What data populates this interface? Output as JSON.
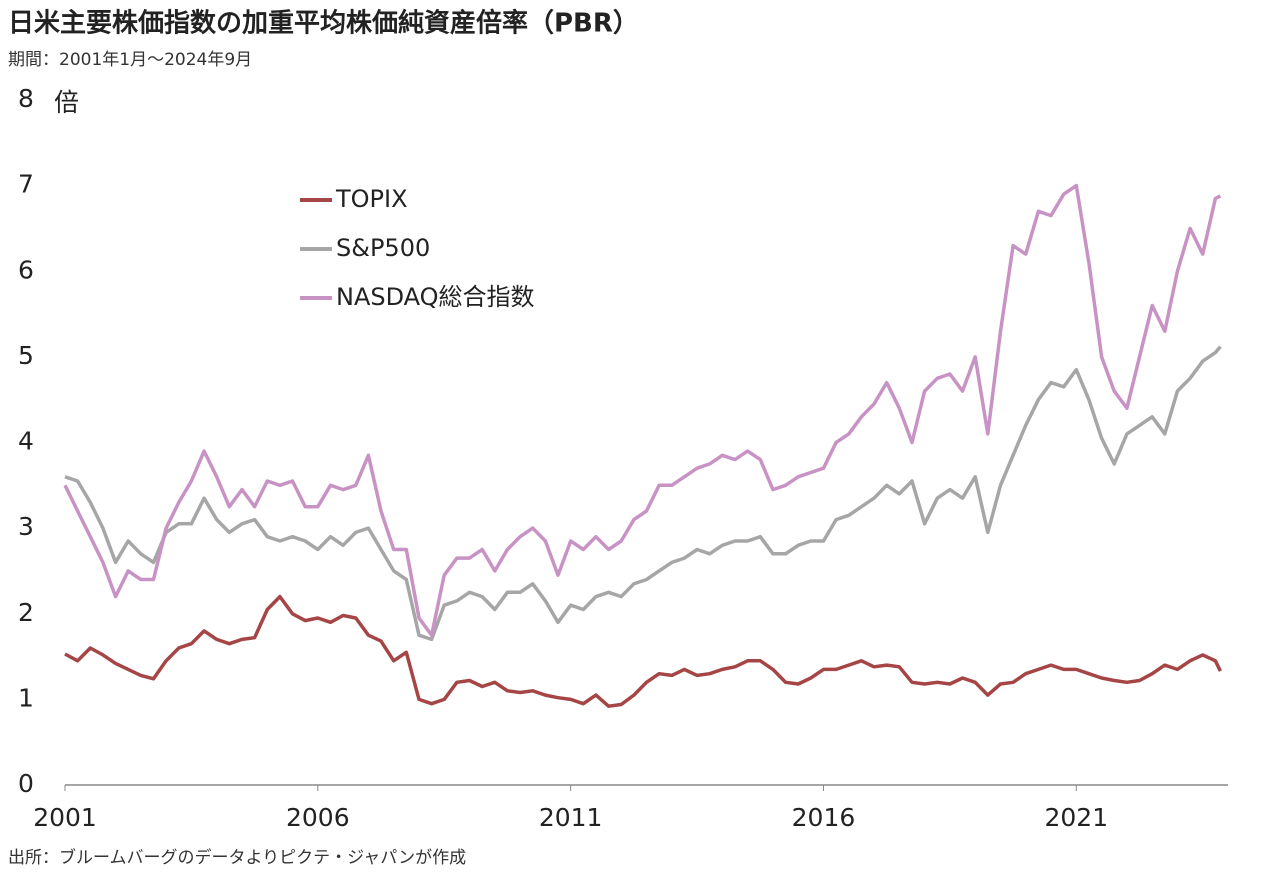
{
  "chart_data": {
    "type": "line",
    "title": "日米主要株価指数の加重平均株価純資産倍率（PBR）",
    "subtitle": "期間：2001年1月～2024年9月",
    "y_label": "倍",
    "source": "出所：ブルームバーグのデータよりピクテ・ジャパンが作成",
    "x": [
      2001,
      2001.25,
      2001.5,
      2001.75,
      2002,
      2002.25,
      2002.5,
      2002.75,
      2003,
      2003.25,
      2003.5,
      2003.75,
      2004,
      2004.25,
      2004.5,
      2004.75,
      2005,
      2005.25,
      2005.5,
      2005.75,
      2006,
      2006.25,
      2006.5,
      2006.75,
      2007,
      2007.25,
      2007.5,
      2007.75,
      2008,
      2008.25,
      2008.5,
      2008.75,
      2009,
      2009.25,
      2009.5,
      2009.75,
      2010,
      2010.25,
      2010.5,
      2010.75,
      2011,
      2011.25,
      2011.5,
      2011.75,
      2012,
      2012.25,
      2012.5,
      2012.75,
      2013,
      2013.25,
      2013.5,
      2013.75,
      2014,
      2014.25,
      2014.5,
      2014.75,
      2015,
      2015.25,
      2015.5,
      2015.75,
      2016,
      2016.25,
      2016.5,
      2016.75,
      2017,
      2017.25,
      2017.5,
      2017.75,
      2018,
      2018.25,
      2018.5,
      2018.75,
      2019,
      2019.25,
      2019.5,
      2019.75,
      2020,
      2020.25,
      2020.5,
      2020.75,
      2021,
      2021.25,
      2021.5,
      2021.75,
      2022,
      2022.25,
      2022.5,
      2022.75,
      2023,
      2023.25,
      2023.5,
      2023.75,
      2023.85
    ],
    "series": [
      {
        "name": "TOPIX",
        "color": "#a54545",
        "values": [
          1.53,
          1.45,
          1.6,
          1.52,
          1.42,
          1.35,
          1.28,
          1.24,
          1.45,
          1.6,
          1.65,
          1.8,
          1.7,
          1.65,
          1.7,
          1.72,
          2.05,
          2.2,
          2.0,
          1.92,
          1.95,
          1.9,
          1.98,
          1.95,
          1.75,
          1.68,
          1.45,
          1.55,
          1.0,
          0.95,
          1.0,
          1.2,
          1.22,
          1.15,
          1.2,
          1.1,
          1.08,
          1.1,
          1.05,
          1.02,
          1.0,
          0.95,
          1.05,
          0.92,
          0.94,
          1.05,
          1.2,
          1.3,
          1.28,
          1.35,
          1.28,
          1.3,
          1.35,
          1.38,
          1.45,
          1.45,
          1.35,
          1.2,
          1.18,
          1.25,
          1.35,
          1.35,
          1.4,
          1.45,
          1.38,
          1.4,
          1.38,
          1.2,
          1.18,
          1.2,
          1.18,
          1.25,
          1.2,
          1.05,
          1.18,
          1.2,
          1.3,
          1.35,
          1.4,
          1.35,
          1.35,
          1.3,
          1.25,
          1.22,
          1.2,
          1.22,
          1.3,
          1.4,
          1.35,
          1.45,
          1.52,
          1.45,
          1.33
        ]
      },
      {
        "name": "S&P500",
        "color": "#a6a6a6",
        "values": [
          3.6,
          3.55,
          3.3,
          3.0,
          2.6,
          2.85,
          2.7,
          2.6,
          2.95,
          3.05,
          3.05,
          3.35,
          3.1,
          2.95,
          3.05,
          3.1,
          2.9,
          2.85,
          2.9,
          2.85,
          2.75,
          2.9,
          2.8,
          2.95,
          3.0,
          2.75,
          2.5,
          2.4,
          1.75,
          1.7,
          2.1,
          2.15,
          2.25,
          2.2,
          2.05,
          2.25,
          2.25,
          2.35,
          2.15,
          1.9,
          2.1,
          2.05,
          2.2,
          2.25,
          2.2,
          2.35,
          2.4,
          2.5,
          2.6,
          2.65,
          2.75,
          2.7,
          2.8,
          2.85,
          2.85,
          2.9,
          2.7,
          2.7,
          2.8,
          2.85,
          2.85,
          3.1,
          3.15,
          3.25,
          3.35,
          3.5,
          3.4,
          3.55,
          3.05,
          3.35,
          3.45,
          3.35,
          3.6,
          2.95,
          3.5,
          3.85,
          4.2,
          4.5,
          4.7,
          4.65,
          4.85,
          4.5,
          4.05,
          3.75,
          4.1,
          4.2,
          4.3,
          4.1,
          4.6,
          4.75,
          4.95,
          5.05,
          5.12
        ]
      },
      {
        "name": "NASDAQ総合指数",
        "color": "#c893c4",
        "values": [
          3.5,
          3.2,
          2.9,
          2.6,
          2.2,
          2.5,
          2.4,
          2.4,
          3.0,
          3.3,
          3.55,
          3.9,
          3.6,
          3.25,
          3.45,
          3.25,
          3.55,
          3.5,
          3.55,
          3.25,
          3.25,
          3.5,
          3.45,
          3.5,
          3.85,
          3.2,
          2.75,
          2.75,
          1.95,
          1.75,
          2.45,
          2.65,
          2.65,
          2.75,
          2.5,
          2.75,
          2.9,
          3.0,
          2.85,
          2.45,
          2.85,
          2.75,
          2.9,
          2.75,
          2.85,
          3.1,
          3.2,
          3.5,
          3.5,
          3.6,
          3.7,
          3.75,
          3.85,
          3.8,
          3.9,
          3.8,
          3.45,
          3.5,
          3.6,
          3.65,
          3.7,
          4.0,
          4.1,
          4.3,
          4.45,
          4.7,
          4.4,
          4.0,
          4.6,
          4.75,
          4.8,
          4.6,
          5.0,
          4.1,
          5.3,
          6.3,
          6.2,
          6.7,
          6.65,
          6.9,
          7.0,
          6.1,
          5.0,
          4.6,
          4.4,
          5.0,
          5.6,
          5.3,
          6.0,
          6.5,
          6.2,
          6.85,
          6.88
        ]
      }
    ],
    "xlim": [
      2001,
      2024
    ],
    "xticks": [
      2001,
      2006,
      2011,
      2016,
      2021
    ],
    "ylim": [
      0,
      8
    ],
    "yticks": [
      0,
      1,
      2,
      3,
      4,
      5,
      6,
      7,
      8
    ],
    "grid": false,
    "legend": "upper left"
  }
}
